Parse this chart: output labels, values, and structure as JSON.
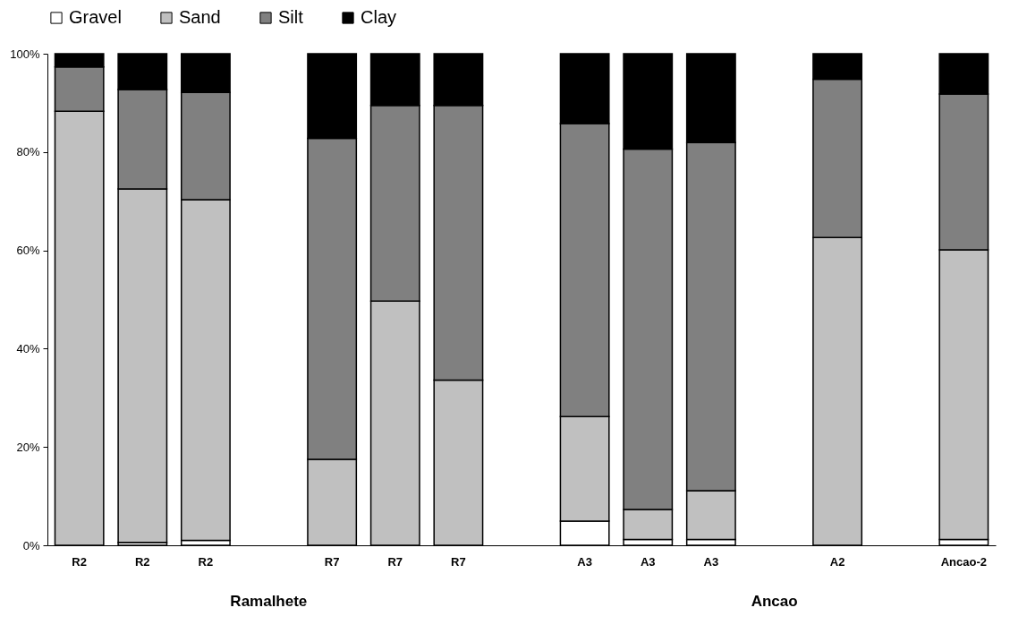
{
  "chart_data": {
    "type": "bar",
    "stacked": true,
    "legend": "top",
    "grid": false,
    "categories": [
      "R2",
      "R2",
      "R2",
      null,
      "R7",
      "R7",
      "R7",
      null,
      "A3",
      "A3",
      "A3",
      null,
      "A2",
      null,
      "Ancao-2"
    ],
    "series": [
      {
        "name": "Gravel",
        "color": "#ffffff",
        "values": [
          0,
          0.6,
          1.0,
          null,
          0,
          0,
          0,
          null,
          4.9,
          1.2,
          1.2,
          null,
          0,
          null,
          1.2
        ]
      },
      {
        "name": "Sand",
        "color": "#c0c0c0",
        "values": [
          88.3,
          71.9,
          69.3,
          null,
          17.5,
          49.7,
          33.6,
          null,
          21.3,
          6.1,
          9.9,
          null,
          62.6,
          null,
          58.9
        ]
      },
      {
        "name": "Silt",
        "color": "#808080",
        "values": [
          9.0,
          20.2,
          21.8,
          null,
          65.3,
          39.8,
          55.9,
          null,
          59.6,
          73.3,
          70.8,
          null,
          32.2,
          null,
          31.7
        ]
      },
      {
        "name": "Clay",
        "color": "#000000",
        "values": [
          2.7,
          7.3,
          7.9,
          null,
          17.2,
          10.5,
          10.5,
          null,
          14.2,
          19.4,
          18.1,
          null,
          5.2,
          null,
          8.2
        ]
      }
    ],
    "ylim": [
      0,
      100
    ],
    "yticks": [
      {
        "value": 0,
        "label": "0%"
      },
      {
        "value": 20,
        "label": "20%"
      },
      {
        "value": 40,
        "label": "40%"
      },
      {
        "value": 60,
        "label": "60%"
      },
      {
        "value": 80,
        "label": "80%"
      },
      {
        "value": 100,
        "label": "100%"
      }
    ],
    "annotations": [
      "Ramalhete",
      "Ancao"
    ]
  }
}
